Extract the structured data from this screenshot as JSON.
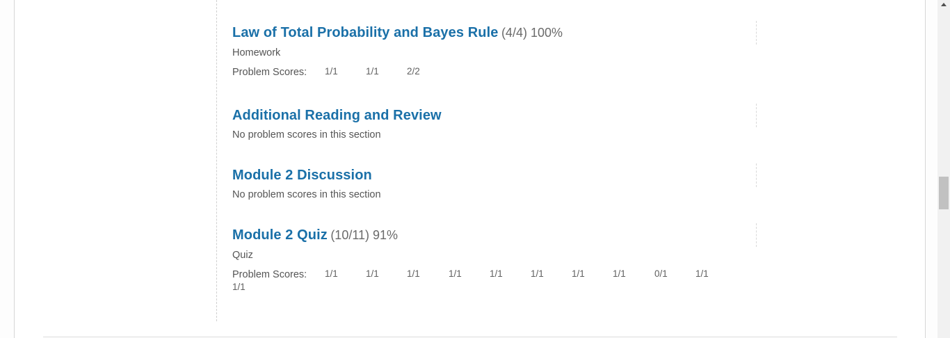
{
  "sections": [
    {
      "title": "Law of Total Probability and Bayes Rule",
      "score": "(4/4) 100%",
      "type": "Homework",
      "scores_label": "Problem Scores:",
      "problem_scores": [
        "1/1",
        "1/1",
        "2/2"
      ]
    },
    {
      "title": "Additional Reading and Review",
      "no_scores_text": "No problem scores in this section"
    },
    {
      "title": "Module 2 Discussion",
      "no_scores_text": "No problem scores in this section"
    },
    {
      "title": "Module 2 Quiz",
      "score": "(10/11) 91%",
      "type": "Quiz",
      "scores_label": "Problem Scores:",
      "problem_scores": [
        "1/1",
        "1/1",
        "1/1",
        "1/1",
        "1/1",
        "1/1",
        "1/1",
        "1/1",
        "0/1",
        "1/1",
        "1/1"
      ]
    }
  ]
}
